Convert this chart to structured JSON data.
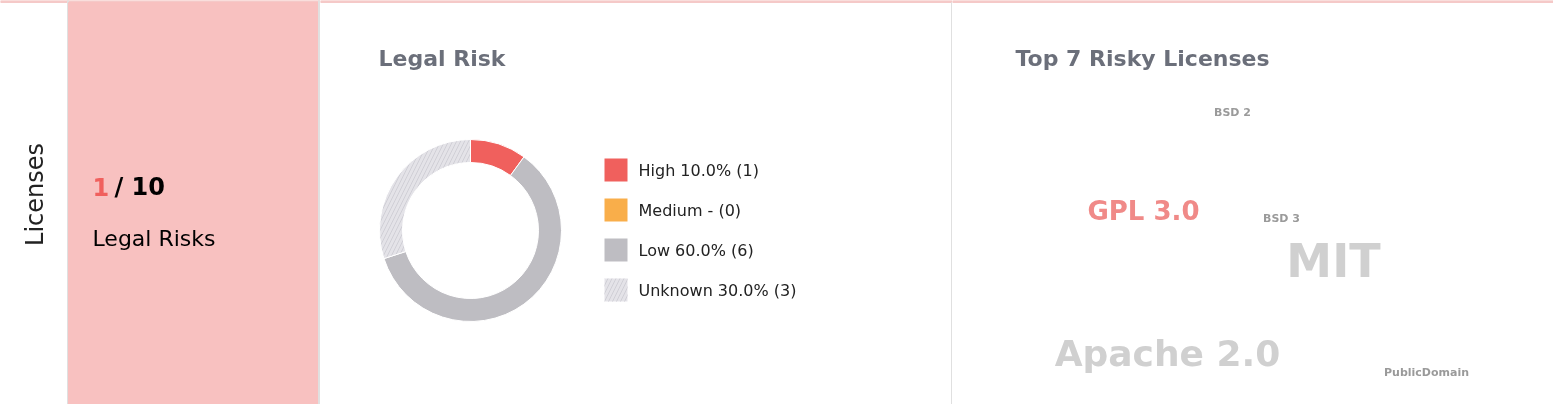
{
  "chart_data": [
    {
      "type": "other",
      "title": "Licenses",
      "annotations": [
        "1",
        "/ 10",
        "Legal Risks"
      ],
      "colors": [
        "#f0605d",
        "#000000",
        "#000000"
      ]
    },
    {
      "type": "donut",
      "title": "Legal Risk",
      "categories": [
        "High",
        "Medium",
        "Low",
        "Unknown"
      ],
      "values": [
        10,
        0,
        60,
        30
      ],
      "colors": [
        "#f0605d",
        "#f9ae4a",
        "#bebdc2",
        "#e4e3e8"
      ],
      "value_labels": [
        "10.0% (1)",
        "- (0)",
        "60.0% (6)",
        "30.0% (3)"
      ],
      "legend": "right"
    },
    {
      "type": "other",
      "title": "Top 7 Risky Licenses",
      "categories": [
        "BSD 2",
        "GPL 3.0",
        "BSD 3",
        "MIT",
        "Apache 2.0",
        "PublicDomain"
      ]
    }
  ]
}
